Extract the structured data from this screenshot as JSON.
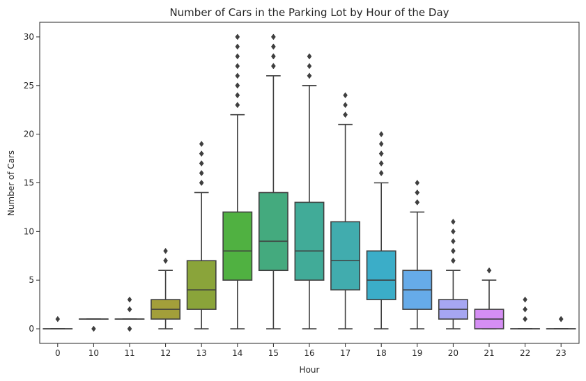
{
  "chart_data": {
    "type": "boxplot",
    "title": "Number of Cars in the Parking Lot by Hour of the Day",
    "xlabel": "Hour",
    "ylabel": "Number of Cars",
    "ylim": [
      -1.5,
      31.5
    ],
    "yticks": [
      0,
      5,
      10,
      15,
      20,
      25,
      30
    ],
    "grid": false,
    "categories": [
      "0",
      "10",
      "11",
      "12",
      "13",
      "14",
      "15",
      "16",
      "17",
      "18",
      "19",
      "20",
      "21",
      "22",
      "23"
    ],
    "boxes": [
      {
        "category": "0",
        "whislo": 0,
        "q1": 0,
        "med": 0,
        "q3": 0,
        "whishi": 0,
        "fliers": [
          1
        ],
        "color": "#f77189"
      },
      {
        "category": "10",
        "whislo": 1,
        "q1": 1,
        "med": 1,
        "q3": 1,
        "whishi": 1,
        "fliers": [
          0
        ],
        "color": "#e7854f"
      },
      {
        "category": "11",
        "whislo": 1,
        "q1": 1,
        "med": 1,
        "q3": 1,
        "whishi": 1,
        "fliers": [
          0,
          0,
          2,
          2,
          3
        ],
        "color": "#c39532"
      },
      {
        "category": "12",
        "whislo": 0,
        "q1": 1,
        "med": 2,
        "q3": 3,
        "whishi": 6,
        "fliers": [
          7,
          7,
          8
        ],
        "color": "#a39f3a"
      },
      {
        "category": "13",
        "whislo": 0,
        "q1": 2,
        "med": 4,
        "q3": 7,
        "whishi": 14,
        "fliers": [
          15,
          15,
          16,
          16,
          17,
          17,
          18,
          18,
          19
        ],
        "color": "#8aa43a"
      },
      {
        "category": "14",
        "whislo": 0,
        "q1": 5,
        "med": 8,
        "q3": 12,
        "whishi": 22,
        "fliers": [
          23,
          23,
          24,
          24,
          25,
          25,
          26,
          27,
          28,
          29,
          30,
          30
        ],
        "color": "#50b141"
      },
      {
        "category": "15",
        "whislo": 0,
        "q1": 6,
        "med": 9,
        "q3": 14,
        "whishi": 26,
        "fliers": [
          27,
          27,
          28,
          28,
          29,
          29,
          30,
          30
        ],
        "color": "#44aa7e"
      },
      {
        "category": "16",
        "whislo": 0,
        "q1": 5,
        "med": 8,
        "q3": 13,
        "whishi": 25,
        "fliers": [
          26,
          26,
          27,
          28,
          28
        ],
        "color": "#41ab98"
      },
      {
        "category": "17",
        "whislo": 0,
        "q1": 4,
        "med": 7,
        "q3": 11,
        "whishi": 21,
        "fliers": [
          22,
          22,
          23,
          24
        ],
        "color": "#41acae"
      },
      {
        "category": "18",
        "whislo": 0,
        "q1": 3,
        "med": 5,
        "q3": 8,
        "whishi": 15,
        "fliers": [
          16,
          16,
          17,
          17,
          18,
          18,
          19,
          20
        ],
        "color": "#3badc8"
      },
      {
        "category": "19",
        "whislo": 0,
        "q1": 2,
        "med": 4,
        "q3": 6,
        "whishi": 12,
        "fliers": [
          13,
          13,
          14,
          14,
          15
        ],
        "color": "#66abe9"
      },
      {
        "category": "20",
        "whislo": 0,
        "q1": 1,
        "med": 2,
        "q3": 3,
        "whishi": 6,
        "fliers": [
          7,
          7,
          8,
          8,
          9,
          10,
          11
        ],
        "color": "#a6a6f2"
      },
      {
        "category": "21",
        "whislo": 0,
        "q1": 0,
        "med": 1,
        "q3": 2,
        "whishi": 5,
        "fliers": [
          6
        ],
        "color": "#d58ef4"
      },
      {
        "category": "22",
        "whislo": 0,
        "q1": 0,
        "med": 0,
        "q3": 0,
        "whishi": 0,
        "fliers": [
          1,
          1,
          2,
          2,
          3
        ],
        "color": "#f371d6"
      },
      {
        "category": "23",
        "whislo": 0,
        "q1": 0,
        "med": 0,
        "q3": 0,
        "whishi": 0,
        "fliers": [
          1,
          1
        ],
        "color": "#f66ca8"
      }
    ],
    "line_color": "#3f3f3f"
  }
}
